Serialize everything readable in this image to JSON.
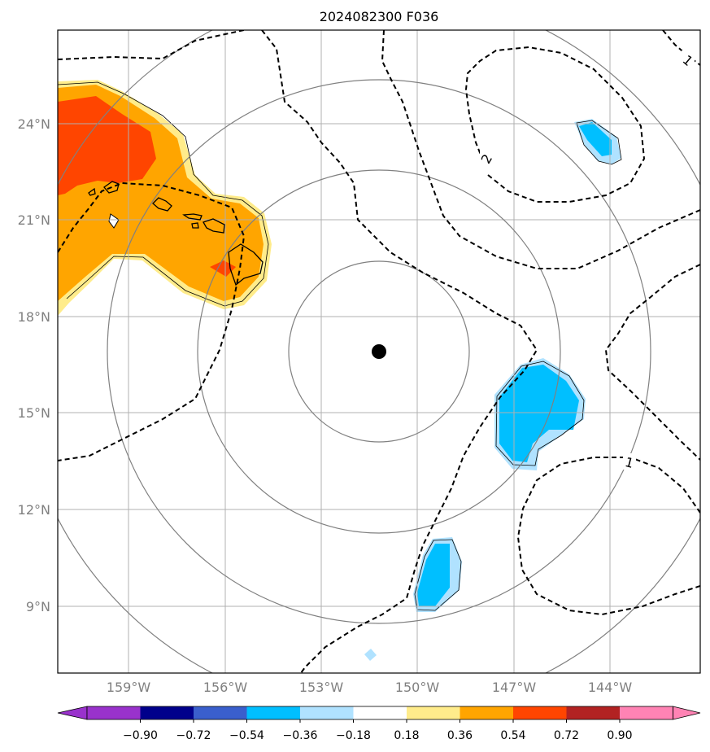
{
  "title": "2024082300 F036",
  "lat_labels": [
    "24°N",
    "21°N",
    "18°N",
    "15°N",
    "12°N",
    "9°N"
  ],
  "lon_labels": [
    "159°W",
    "156°W",
    "153°W",
    "150°W",
    "147°W",
    "144°W"
  ],
  "colorbar": {
    "ticks": [
      "−0.90",
      "−0.72",
      "−0.54",
      "−0.36",
      "−0.18",
      "0.18",
      "0.36",
      "0.54",
      "0.72",
      "0.90"
    ],
    "colors": [
      "#9932cc",
      "#00008b",
      "#3a5fcd",
      "#00bfff",
      "#b0e2ff",
      "#ffffff",
      "#ffec8b",
      "#ffa500",
      "#ff4500",
      "#b22222",
      "#ff83b4"
    ]
  },
  "contour_labels": [
    "1",
    "2",
    "1"
  ],
  "storm_center": {
    "lat": 16.9,
    "lon": -151.2,
    "color": "#000000"
  },
  "colors": {
    "grid": "#b0b0b0",
    "rings": "#808080",
    "axis_text": "#808080"
  }
}
